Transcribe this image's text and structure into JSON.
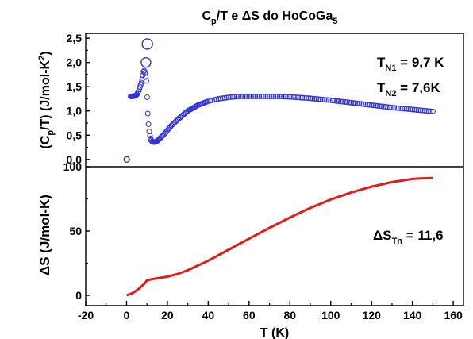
{
  "chart_data": [
    {
      "type": "scatter",
      "panel": "top",
      "title": "C_p/T e ΔS do HoCoGa_5",
      "title_parts": {
        "t1": "C",
        "t1sub": "p",
        "t2": "/T e ",
        "t3": "ΔS do HoCoGa",
        "t3sub": "5"
      },
      "ylabel": "(C_p/T) (J/mol-K^2)",
      "ylabel_parts": {
        "a": "(C",
        "sub": "p",
        "b": "/T) (J/mol-K",
        "sup": "2",
        "c": ")"
      },
      "ylim": [
        -0.15,
        2.6
      ],
      "yticks": [
        "0,0",
        "0,5",
        "1,0",
        "1,5",
        "2,0",
        "2,5"
      ],
      "ytick_values": [
        0,
        0.5,
        1.0,
        1.5,
        2.0,
        2.5
      ],
      "xlim": [
        -20,
        165
      ],
      "color": "#2f2fd8",
      "annotations": [
        {
          "main": "T",
          "sub": "N1",
          "rest": " = 9,7 K"
        },
        {
          "main": "T",
          "sub": "N2",
          "rest": " = 7,6K"
        }
      ],
      "special_points": [
        {
          "x": 0.1,
          "y": 0.0,
          "r": 3.5
        },
        {
          "x": 9.5,
          "y": 2.0,
          "r": 6
        },
        {
          "x": 10.2,
          "y": 2.38,
          "r": 6.5
        }
      ],
      "curve": {
        "x": [
          2,
          3,
          4,
          5,
          6,
          7,
          7.5,
          8,
          8.5,
          9,
          9.7,
          10.5,
          11,
          11.5,
          12,
          12.5,
          13,
          14,
          15,
          16,
          18,
          20,
          22,
          25,
          28,
          30,
          35,
          40,
          45,
          50,
          55,
          60,
          65,
          70,
          75,
          80,
          90,
          100,
          110,
          120,
          130,
          140,
          150
        ],
        "y": [
          1.3,
          1.3,
          1.31,
          1.33,
          1.42,
          1.55,
          1.62,
          1.75,
          1.85,
          1.78,
          1.62,
          0.85,
          0.6,
          0.48,
          0.4,
          0.37,
          0.36,
          0.36,
          0.38,
          0.42,
          0.5,
          0.6,
          0.7,
          0.82,
          0.93,
          1.0,
          1.12,
          1.2,
          1.25,
          1.28,
          1.3,
          1.3,
          1.3,
          1.3,
          1.3,
          1.29,
          1.26,
          1.22,
          1.17,
          1.12,
          1.07,
          1.03,
          0.99
        ]
      }
    },
    {
      "type": "line",
      "panel": "bottom",
      "ylabel": "ΔS (J/mol-K)",
      "xlabel": "T (K)",
      "ylim": [
        -8,
        100
      ],
      "yticks": [
        "0",
        "50",
        "100"
      ],
      "ytick_values": [
        0,
        50,
        100
      ],
      "xlim": [
        -20,
        165
      ],
      "xticks": [
        "-20",
        "0",
        "20",
        "40",
        "60",
        "80",
        "100",
        "120",
        "140",
        "160"
      ],
      "xtick_values": [
        -20,
        0,
        20,
        40,
        60,
        80,
        100,
        120,
        140,
        160
      ],
      "color": "#e31b1b",
      "annotation": {
        "main": "ΔS",
        "sub": "Tn",
        "rest": " = 11,6"
      },
      "x": [
        0,
        3,
        6,
        9,
        10,
        12,
        15,
        20,
        25,
        30,
        40,
        50,
        60,
        70,
        80,
        90,
        100,
        110,
        120,
        130,
        140,
        145,
        150
      ],
      "y": [
        0,
        1.8,
        5,
        9.5,
        11.6,
        12.4,
        13.2,
        14.5,
        16.6,
        19.5,
        27,
        35.5,
        44,
        52.5,
        60.5,
        68,
        74.5,
        80,
        84.5,
        88,
        90.5,
        91,
        91.2
      ]
    }
  ]
}
